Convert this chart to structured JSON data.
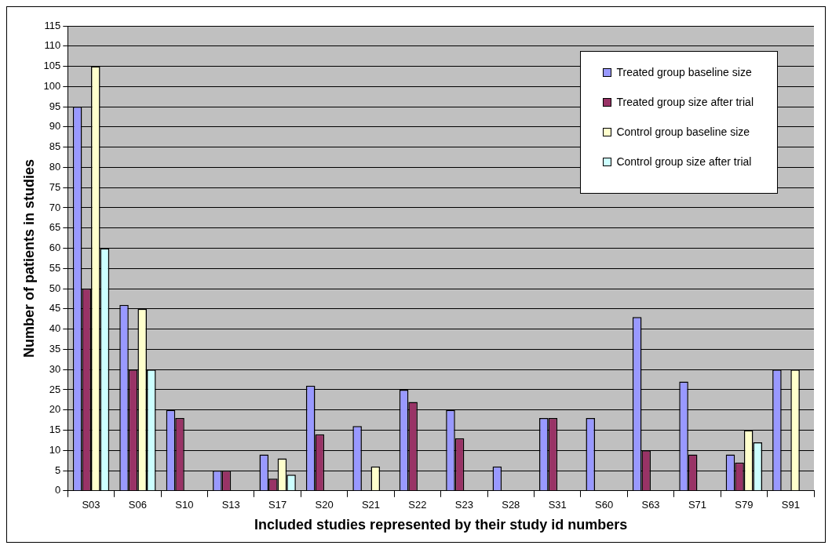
{
  "chart_data": {
    "type": "bar",
    "xlabel": "Included studies represented by their study id numbers",
    "ylabel": "Number of patients in studies",
    "categories": [
      "S03",
      "S06",
      "S10",
      "S13",
      "S17",
      "S20",
      "S21",
      "S22",
      "S23",
      "S28",
      "S31",
      "S60",
      "S63",
      "S71",
      "S79",
      "S91"
    ],
    "series": [
      {
        "name": "Treated group baseline size",
        "color": "#9999ff",
        "values": [
          95,
          46,
          20,
          5,
          9,
          26,
          16,
          25,
          20,
          6,
          18,
          18,
          43,
          27,
          9,
          30
        ]
      },
      {
        "name": "Treated group size after trial",
        "color": "#993366",
        "values": [
          50,
          30,
          18,
          5,
          3,
          14,
          null,
          22,
          13,
          null,
          18,
          null,
          10,
          9,
          7,
          null
        ]
      },
      {
        "name": "Control group baseline size",
        "color": "#ffffcc",
        "values": [
          105,
          45,
          null,
          null,
          8,
          null,
          6,
          null,
          null,
          null,
          null,
          null,
          null,
          null,
          15,
          30
        ]
      },
      {
        "name": "Control group size after trial",
        "color": "#ccffff",
        "values": [
          60,
          30,
          null,
          null,
          4,
          null,
          null,
          null,
          null,
          null,
          null,
          null,
          null,
          null,
          12,
          null
        ]
      }
    ],
    "ylim": [
      0,
      115
    ],
    "yticks": [
      0,
      5,
      10,
      15,
      20,
      25,
      30,
      35,
      40,
      45,
      50,
      55,
      60,
      65,
      70,
      75,
      80,
      85,
      90,
      95,
      100,
      105,
      110,
      115
    ],
    "grid": "y",
    "legend": "top right"
  }
}
